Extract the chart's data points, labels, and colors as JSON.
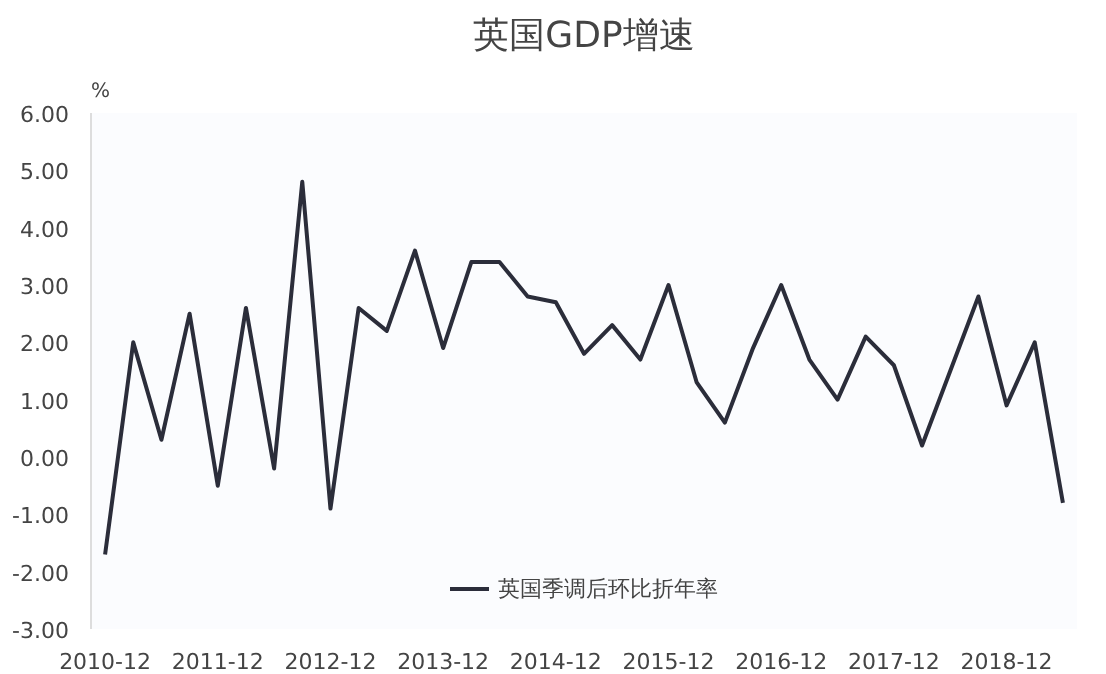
{
  "chart_data": {
    "type": "line",
    "title": "英国GDP增速",
    "ylabel": "%",
    "categories": [
      "2010-12",
      null,
      null,
      null,
      "2011-12",
      null,
      null,
      null,
      "2012-12",
      null,
      null,
      null,
      "2013-12",
      null,
      null,
      null,
      "2014-12",
      null,
      null,
      null,
      "2015-12",
      null,
      null,
      null,
      "2016-12",
      null,
      null,
      null,
      "2017-12",
      null,
      null,
      null,
      "2018-12",
      null,
      null
    ],
    "series": [
      {
        "name": "英国季调后环比折年率",
        "color": "#2b2d3a",
        "values": [
          -1.7,
          2.0,
          0.3,
          2.5,
          -0.5,
          2.6,
          -0.2,
          4.8,
          -0.9,
          2.6,
          2.2,
          3.6,
          1.9,
          3.4,
          3.4,
          2.8,
          2.7,
          1.8,
          2.3,
          1.7,
          3.0,
          1.3,
          0.6,
          1.9,
          3.0,
          1.7,
          1.0,
          2.1,
          1.6,
          0.2,
          1.5,
          2.8,
          0.9,
          2.0,
          -0.8
        ]
      }
    ],
    "ylim": [
      -3,
      6
    ],
    "yticks": [
      {
        "value": -3,
        "label": "-3.00"
      },
      {
        "value": -2,
        "label": "-2.00"
      },
      {
        "value": -1,
        "label": "-1.00"
      },
      {
        "value": 0,
        "label": "0.00"
      },
      {
        "value": 1,
        "label": "1.00"
      },
      {
        "value": 2,
        "label": "2.00"
      },
      {
        "value": 3,
        "label": "3.00"
      },
      {
        "value": 4,
        "label": "4.00"
      },
      {
        "value": 5,
        "label": "5.00"
      },
      {
        "value": 6,
        "label": "6.00"
      }
    ],
    "grid": false,
    "legend": "bottom",
    "marker": "none",
    "line_style": "solid"
  }
}
